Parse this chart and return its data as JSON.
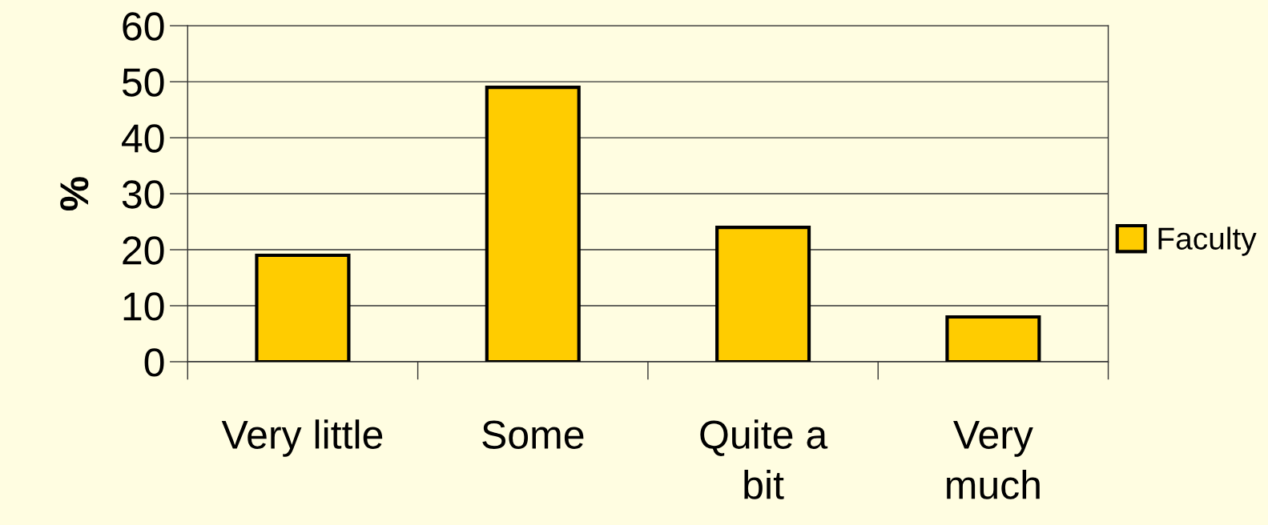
{
  "chart_data": {
    "type": "bar",
    "ylabel": "%",
    "categories": [
      "Very little",
      "Some",
      "Quite a\nbit",
      "Very\nmuch"
    ],
    "series": [
      {
        "name": "Faculty",
        "color": "#ffcc00",
        "values": [
          19,
          49,
          24,
          8
        ]
      }
    ],
    "ylim": [
      0,
      60
    ],
    "yticks": [
      0,
      10,
      20,
      30,
      40,
      50,
      60
    ],
    "grid": "y",
    "legend": "right"
  }
}
